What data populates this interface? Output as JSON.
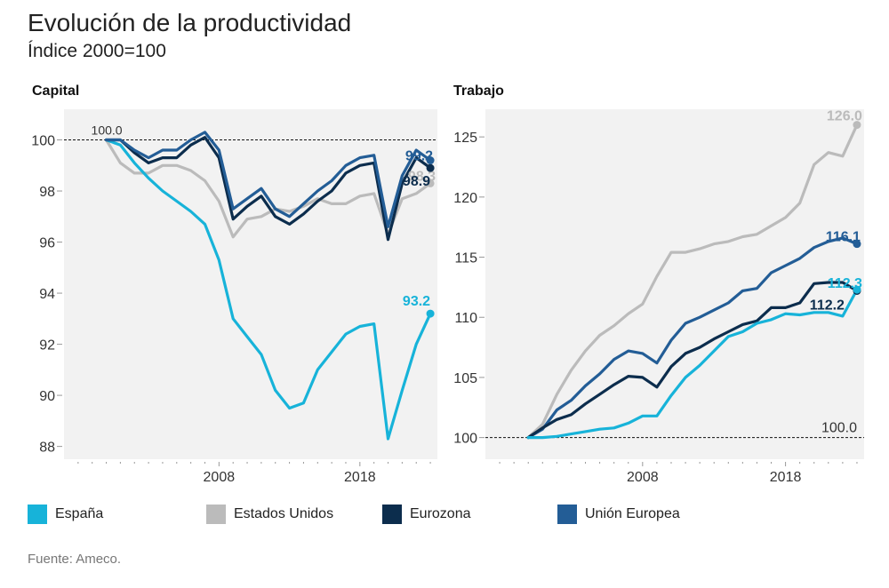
{
  "title": "Evolución de la productividad",
  "subtitle": "Índice 2000=100",
  "source": "Fuente: Ameco.",
  "colors": {
    "espana": "#17b3d9",
    "eeuu": "#bbbbbb",
    "eurozona": "#0c2d4d",
    "ue": "#235d96",
    "panel_bg": "#f2f2f2"
  },
  "legend": [
    {
      "key": "espana",
      "label": "España"
    },
    {
      "key": "eeuu",
      "label": "Estados Unidos"
    },
    {
      "key": "eurozona",
      "label": "Eurozona"
    },
    {
      "key": "ue",
      "label": "Unión Europea"
    }
  ],
  "chart_data": [
    {
      "type": "line",
      "title": "Capital",
      "xlabel": "",
      "ylabel": "",
      "xlim": [
        1997,
        2023.5
      ],
      "ylim": [
        87.5,
        101.2
      ],
      "yticks": [
        88,
        90,
        92,
        94,
        96,
        98,
        100
      ],
      "xticks_labeled": [
        2008,
        2018
      ],
      "reference_line": {
        "value": 100,
        "label": "100.0"
      },
      "series": [
        {
          "key": "eeuu",
          "name": "Estados Unidos",
          "x": [
            2000,
            2001,
            2002,
            2003,
            2004,
            2005,
            2006,
            2007,
            2008,
            2009,
            2010,
            2011,
            2012,
            2013,
            2014,
            2015,
            2016,
            2017,
            2018,
            2019,
            2020,
            2021,
            2022,
            2023
          ],
          "values": [
            100,
            99.1,
            98.7,
            98.7,
            99.0,
            99.0,
            98.8,
            98.4,
            97.6,
            96.2,
            96.9,
            97.0,
            97.3,
            97.2,
            97.4,
            97.7,
            97.5,
            97.5,
            97.8,
            97.9,
            96.3,
            97.7,
            97.9,
            98.3
          ],
          "end_label": "98.3"
        },
        {
          "key": "espana",
          "name": "España",
          "x": [
            2000,
            2001,
            2002,
            2003,
            2004,
            2005,
            2006,
            2007,
            2008,
            2009,
            2010,
            2011,
            2012,
            2013,
            2014,
            2015,
            2016,
            2017,
            2018,
            2019,
            2020,
            2021,
            2022,
            2023
          ],
          "values": [
            100,
            99.8,
            99.1,
            98.5,
            98.0,
            97.6,
            97.2,
            96.7,
            95.3,
            93.0,
            92.3,
            91.6,
            90.2,
            89.5,
            89.7,
            91.0,
            91.7,
            92.4,
            92.7,
            92.8,
            88.3,
            90.2,
            92.0,
            93.2
          ],
          "end_label": "93.2"
        },
        {
          "key": "eurozona",
          "name": "Eurozona",
          "x": [
            2000,
            2001,
            2002,
            2003,
            2004,
            2005,
            2006,
            2007,
            2008,
            2009,
            2010,
            2011,
            2012,
            2013,
            2014,
            2015,
            2016,
            2017,
            2018,
            2019,
            2020,
            2021,
            2022,
            2023
          ],
          "values": [
            100,
            100,
            99.5,
            99.1,
            99.3,
            99.3,
            99.8,
            100.1,
            99.3,
            96.9,
            97.4,
            97.8,
            97.0,
            96.7,
            97.1,
            97.6,
            98.0,
            98.7,
            99.0,
            99.1,
            96.1,
            98.3,
            99.3,
            98.9
          ],
          "end_label": "98.9"
        },
        {
          "key": "ue",
          "name": "Unión Europea",
          "x": [
            2000,
            2001,
            2002,
            2003,
            2004,
            2005,
            2006,
            2007,
            2008,
            2009,
            2010,
            2011,
            2012,
            2013,
            2014,
            2015,
            2016,
            2017,
            2018,
            2019,
            2020,
            2021,
            2022,
            2023
          ],
          "values": [
            100,
            100,
            99.6,
            99.3,
            99.6,
            99.6,
            100.0,
            100.3,
            99.6,
            97.3,
            97.7,
            98.1,
            97.3,
            97.0,
            97.5,
            98.0,
            98.4,
            99.0,
            99.3,
            99.4,
            96.6,
            98.6,
            99.6,
            99.2
          ],
          "end_label": "99.2"
        }
      ]
    },
    {
      "type": "line",
      "title": "Trabajo",
      "xlabel": "",
      "ylabel": "",
      "xlim": [
        1997,
        2023.5
      ],
      "ylim": [
        98.2,
        127.3
      ],
      "yticks": [
        100,
        105,
        110,
        115,
        120,
        125
      ],
      "xticks_labeled": [
        2008,
        2018
      ],
      "reference_line": {
        "value": 100,
        "label": "100.0"
      },
      "series": [
        {
          "key": "eeuu",
          "name": "Estados Unidos",
          "x": [
            2000,
            2001,
            2002,
            2003,
            2004,
            2005,
            2006,
            2007,
            2008,
            2009,
            2010,
            2011,
            2012,
            2013,
            2014,
            2015,
            2016,
            2017,
            2018,
            2019,
            2020,
            2021,
            2022,
            2023
          ],
          "values": [
            100,
            101.1,
            103.6,
            105.6,
            107.2,
            108.5,
            109.3,
            110.3,
            111.1,
            113.4,
            115.4,
            115.4,
            115.7,
            116.1,
            116.3,
            116.7,
            116.9,
            117.6,
            118.3,
            119.5,
            122.7,
            123.7,
            123.4,
            126.0
          ],
          "end_label": "126.0"
        },
        {
          "key": "ue",
          "name": "Unión Europea",
          "x": [
            2000,
            2001,
            2002,
            2003,
            2004,
            2005,
            2006,
            2007,
            2008,
            2009,
            2010,
            2011,
            2012,
            2013,
            2014,
            2015,
            2016,
            2017,
            2018,
            2019,
            2020,
            2021,
            2022,
            2023
          ],
          "values": [
            100,
            100.7,
            102.3,
            103.1,
            104.3,
            105.3,
            106.5,
            107.2,
            107.0,
            106.2,
            108.1,
            109.5,
            110.0,
            110.6,
            111.2,
            112.2,
            112.4,
            113.7,
            114.3,
            114.9,
            115.8,
            116.3,
            116.6,
            116.1
          ],
          "end_label": "116.1"
        },
        {
          "key": "eurozona",
          "name": "Eurozona",
          "x": [
            2000,
            2001,
            2002,
            2003,
            2004,
            2005,
            2006,
            2007,
            2008,
            2009,
            2010,
            2011,
            2012,
            2013,
            2014,
            2015,
            2016,
            2017,
            2018,
            2019,
            2020,
            2021,
            2022,
            2023
          ],
          "values": [
            100,
            100.8,
            101.5,
            101.9,
            102.8,
            103.6,
            104.4,
            105.1,
            105.0,
            104.2,
            105.9,
            107.0,
            107.5,
            108.2,
            108.8,
            109.4,
            109.7,
            110.8,
            110.8,
            111.2,
            112.8,
            112.9,
            112.9,
            112.2
          ],
          "end_label": "112.2"
        },
        {
          "key": "espana",
          "name": "España",
          "x": [
            2000,
            2001,
            2002,
            2003,
            2004,
            2005,
            2006,
            2007,
            2008,
            2009,
            2010,
            2011,
            2012,
            2013,
            2014,
            2015,
            2016,
            2017,
            2018,
            2019,
            2020,
            2021,
            2022,
            2023
          ],
          "values": [
            100,
            100,
            100.1,
            100.3,
            100.5,
            100.7,
            100.8,
            101.2,
            101.8,
            101.8,
            103.5,
            105.0,
            106.0,
            107.2,
            108.4,
            108.8,
            109.5,
            109.8,
            110.3,
            110.2,
            110.4,
            110.4,
            110.1,
            112.3
          ],
          "end_label": "112.3"
        }
      ]
    }
  ]
}
